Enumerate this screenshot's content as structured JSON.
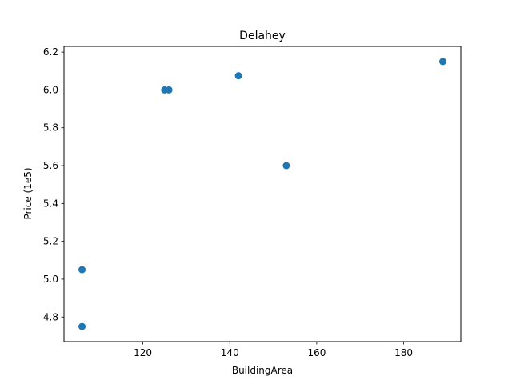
{
  "chart_data": {
    "type": "scatter",
    "title": "Delahey",
    "xlabel": "BuildingArea",
    "ylabel": "Price (1e5)",
    "x": [
      106,
      106,
      125,
      126,
      142,
      153,
      189
    ],
    "y": [
      5.05,
      4.75,
      6.0,
      6.0,
      6.075,
      5.6,
      6.15
    ],
    "xlim": [
      101.85,
      193.15
    ],
    "ylim": [
      4.67,
      6.23
    ],
    "xticks": [
      120,
      140,
      160,
      180
    ],
    "xtick_labels": [
      "120",
      "140",
      "160",
      "180"
    ],
    "yticks": [
      4.8,
      5.0,
      5.2,
      5.4,
      5.6,
      5.8,
      6.0,
      6.2
    ],
    "ytick_labels": [
      "4.8",
      "5.0",
      "5.2",
      "5.4",
      "5.6",
      "5.8",
      "6.0",
      "6.2"
    ],
    "marker_color": "#1f77b4",
    "grid": false,
    "legend": "none"
  }
}
